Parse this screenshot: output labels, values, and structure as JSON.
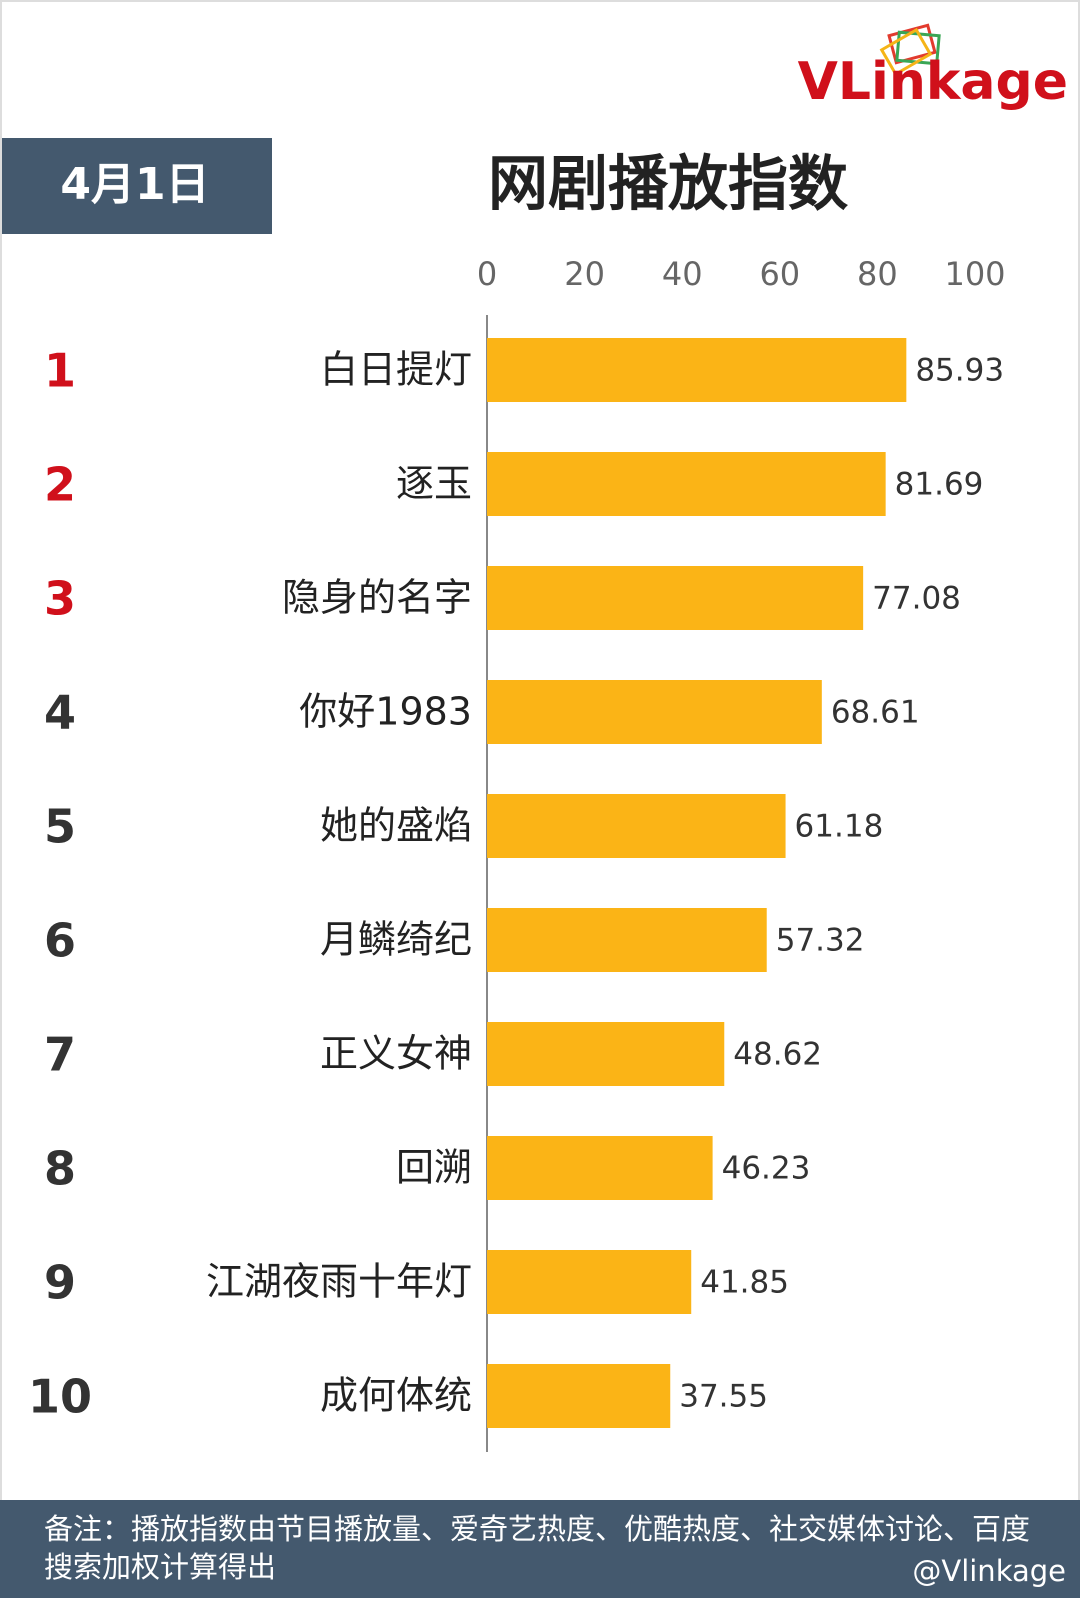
{
  "chart_data": {
    "type": "bar",
    "orientation": "horizontal",
    "logo": "VLinkage",
    "date": "4月1日",
    "title": "网剧播放指数",
    "ranks": [
      "1",
      "2",
      "3",
      "4",
      "5",
      "6",
      "7",
      "8",
      "9",
      "10"
    ],
    "rank_colors": [
      "#d0101b",
      "#d0101b",
      "#d0101b",
      "#333333",
      "#333333",
      "#333333",
      "#333333",
      "#333333",
      "#333333",
      "#333333"
    ],
    "categories": [
      "白日提灯",
      "逐玉",
      "隐身的名字",
      "你好1983",
      "她的盛焰",
      "月鳞绮纪",
      "正义女神",
      "回溯",
      "江湖夜雨十年灯",
      "成何体统"
    ],
    "values": [
      85.93,
      81.69,
      77.08,
      68.61,
      61.18,
      57.32,
      48.62,
      46.23,
      41.85,
      37.55
    ],
    "color": "#fbb416",
    "xlim": [
      0,
      100
    ],
    "xticks": [
      0,
      20,
      40,
      60,
      80,
      100
    ],
    "footnote": "备注：播放指数由节目播放量、爱奇艺热度、优酷热度、社交媒体讨论、百度搜索加权计算得出",
    "watermark": "@Vlinkage"
  }
}
